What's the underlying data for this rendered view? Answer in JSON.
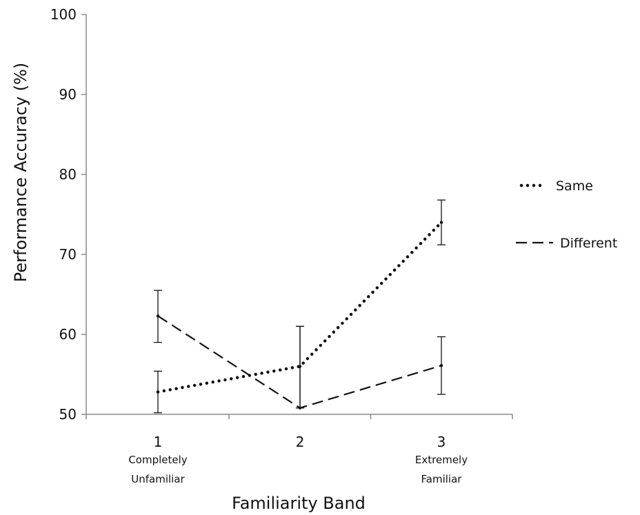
{
  "chart_data": {
    "type": "line",
    "title": "",
    "xlabel": "Familiarity Band",
    "ylabel": "Performance Accuracy (%)",
    "ylim": [
      50,
      100
    ],
    "yticks": [
      50,
      60,
      70,
      80,
      90,
      100
    ],
    "grid": false,
    "legend_position": "right",
    "categories": [
      "1",
      "2",
      "3"
    ],
    "category_sublabels": [
      [
        "Completely",
        "Unfamiliar"
      ],
      [],
      [
        "Extremely",
        "Familiar"
      ]
    ],
    "series": [
      {
        "name": "Same",
        "line_style": "dotted",
        "values": [
          52.8,
          56.0,
          74.0
        ],
        "error_low": [
          50.2,
          50.8,
          71.2
        ],
        "error_high": [
          55.4,
          61.0,
          76.8
        ]
      },
      {
        "name": "Different",
        "line_style": "dashed",
        "values": [
          62.3,
          50.8,
          56.1
        ],
        "error_low": [
          59.0,
          50.8,
          52.5
        ],
        "error_high": [
          65.5,
          61.0,
          59.7
        ]
      }
    ],
    "colors": {
      "ink": "#111111",
      "axis": "#888888"
    }
  }
}
